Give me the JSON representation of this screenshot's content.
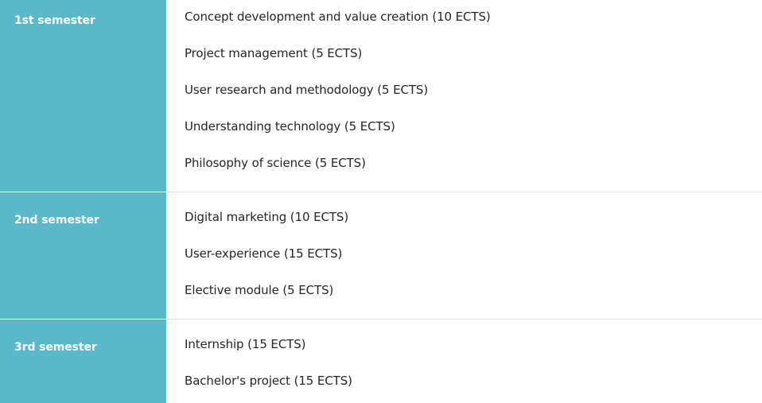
{
  "semesters": [
    {
      "label": "1st semester",
      "courses": [
        "Concept development and value creation (10 ECTS)",
        "Project management (5 ECTS)",
        "User research and methodology (5 ECTS)",
        "Understanding technology (5 ECTS)",
        "Philosophy of science (5 ECTS)"
      ]
    },
    {
      "label": "2nd semester",
      "courses": [
        "Digital marketing (10 ECTS)",
        "User-experience (15 ECTS)",
        "Elective module (5 ECTS)"
      ]
    },
    {
      "label": "3rd semester",
      "courses": [
        "Internship (15 ECTS)",
        "Bachelor's project (15 ECTS)"
      ]
    }
  ],
  "colors": {
    "label_background": "#5bb8cb",
    "label_text": "#ffffff",
    "course_text": "#262626",
    "divider": "#e2e2e2"
  }
}
